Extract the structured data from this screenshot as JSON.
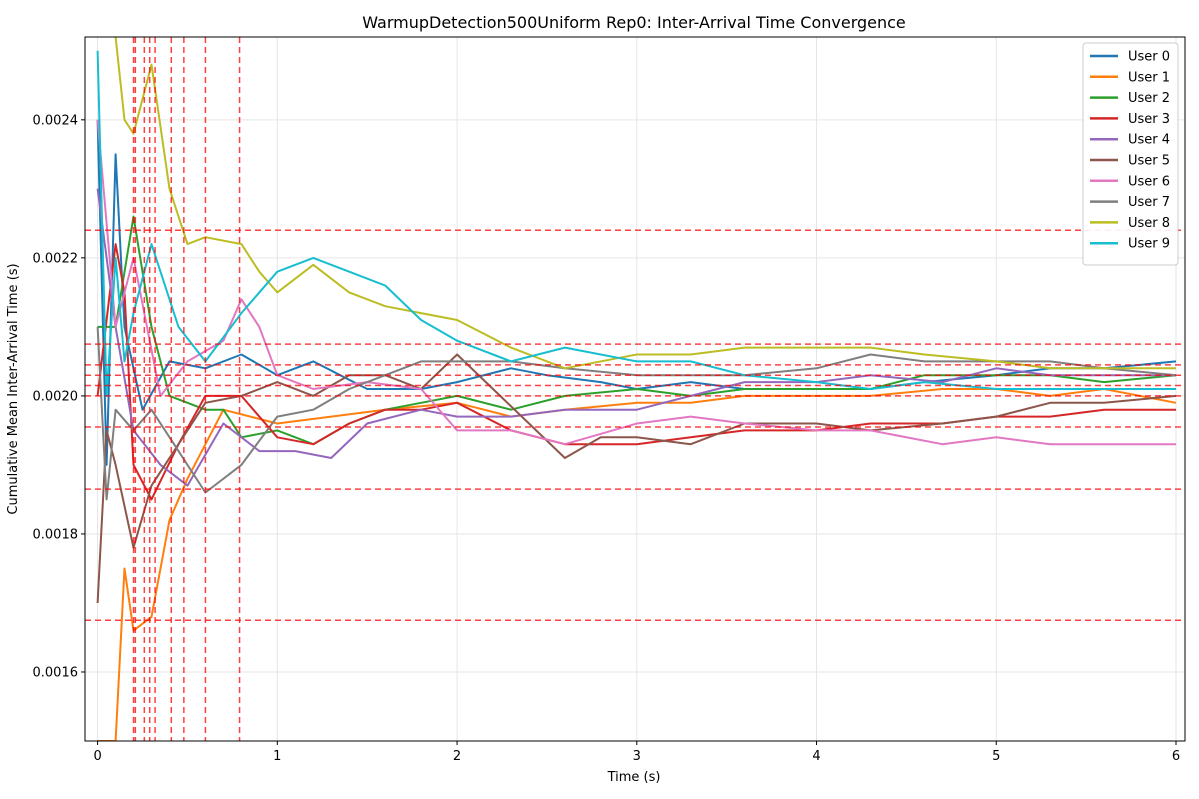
{
  "chart_data": {
    "type": "line",
    "title": "WarmupDetection500Uniform Rep0: Inter-Arrival Time Convergence",
    "xlabel": "Time (s)",
    "ylabel": "Cumulative Mean Inter-Arrival Time (s)",
    "xlim": [
      -0.07,
      6.05
    ],
    "ylim": [
      0.0015,
      0.00252
    ],
    "x_ticks": [
      0,
      1,
      2,
      3,
      4,
      5,
      6
    ],
    "x_tick_labels": [
      "0",
      "1",
      "2",
      "3",
      "4",
      "5",
      "6"
    ],
    "y_ticks": [
      0.0016,
      0.0018,
      0.002,
      0.0022,
      0.0024
    ],
    "y_tick_labels": [
      "0.0016",
      "0.0018",
      "0.0020",
      "0.0022",
      "0.0024"
    ],
    "grid": true,
    "legend_position": "top-right",
    "series": [
      {
        "name": "User 0",
        "color": "#1f77b4",
        "points": [
          [
            0,
            0.0024
          ],
          [
            0.05,
            0.0019
          ],
          [
            0.1,
            0.00235
          ],
          [
            0.15,
            0.0021
          ],
          [
            0.25,
            0.00198
          ],
          [
            0.4,
            0.00205
          ],
          [
            0.6,
            0.00204
          ],
          [
            0.8,
            0.00206
          ],
          [
            1.0,
            0.00203
          ],
          [
            1.2,
            0.00205
          ],
          [
            1.5,
            0.00201
          ],
          [
            1.8,
            0.00201
          ],
          [
            2.0,
            0.00202
          ],
          [
            2.3,
            0.00204
          ],
          [
            2.5,
            0.00203
          ],
          [
            2.8,
            0.00202
          ],
          [
            3.0,
            0.00201
          ],
          [
            3.3,
            0.00202
          ],
          [
            3.6,
            0.00201
          ],
          [
            4.0,
            0.00201
          ],
          [
            4.3,
            0.00201
          ],
          [
            4.6,
            0.00202
          ],
          [
            5.0,
            0.00203
          ],
          [
            5.3,
            0.00204
          ],
          [
            5.6,
            0.00204
          ],
          [
            6.0,
            0.00205
          ]
        ]
      },
      {
        "name": "User 1",
        "color": "#ff7f0e",
        "points": [
          [
            0,
            0.0015
          ],
          [
            0.1,
            0.0015
          ],
          [
            0.15,
            0.00175
          ],
          [
            0.2,
            0.00166
          ],
          [
            0.3,
            0.00168
          ],
          [
            0.4,
            0.00182
          ],
          [
            0.5,
            0.00188
          ],
          [
            0.7,
            0.00198
          ],
          [
            1.0,
            0.00196
          ],
          [
            1.3,
            0.00197
          ],
          [
            1.6,
            0.00198
          ],
          [
            2.0,
            0.00199
          ],
          [
            2.3,
            0.00197
          ],
          [
            2.6,
            0.00198
          ],
          [
            3.0,
            0.00199
          ],
          [
            3.3,
            0.00199
          ],
          [
            3.6,
            0.002
          ],
          [
            4.0,
            0.002
          ],
          [
            4.3,
            0.002
          ],
          [
            4.7,
            0.00201
          ],
          [
            5.0,
            0.00201
          ],
          [
            5.3,
            0.002
          ],
          [
            5.6,
            0.00201
          ],
          [
            6.0,
            0.00199
          ]
        ]
      },
      {
        "name": "User 2",
        "color": "#2ca02c",
        "points": [
          [
            0,
            0.0021
          ],
          [
            0.1,
            0.0021
          ],
          [
            0.2,
            0.00226
          ],
          [
            0.3,
            0.0021
          ],
          [
            0.4,
            0.002
          ],
          [
            0.5,
            0.00199
          ],
          [
            0.6,
            0.00198
          ],
          [
            0.7,
            0.00198
          ],
          [
            0.8,
            0.00194
          ],
          [
            1.0,
            0.00195
          ],
          [
            1.2,
            0.00193
          ],
          [
            1.4,
            0.00196
          ],
          [
            1.6,
            0.00198
          ],
          [
            1.8,
            0.00199
          ],
          [
            2.0,
            0.002
          ],
          [
            2.3,
            0.00198
          ],
          [
            2.6,
            0.002
          ],
          [
            3.0,
            0.00201
          ],
          [
            3.3,
            0.002
          ],
          [
            3.6,
            0.00201
          ],
          [
            4.0,
            0.00201
          ],
          [
            4.3,
            0.00201
          ],
          [
            4.6,
            0.00203
          ],
          [
            5.0,
            0.00203
          ],
          [
            5.3,
            0.00203
          ],
          [
            5.6,
            0.00202
          ],
          [
            6.0,
            0.00203
          ]
        ]
      },
      {
        "name": "User 3",
        "color": "#d62728",
        "points": [
          [
            0,
            0.002
          ],
          [
            0.1,
            0.00222
          ],
          [
            0.15,
            0.00215
          ],
          [
            0.2,
            0.0019
          ],
          [
            0.3,
            0.00185
          ],
          [
            0.45,
            0.00193
          ],
          [
            0.6,
            0.002
          ],
          [
            0.8,
            0.002
          ],
          [
            1.0,
            0.00194
          ],
          [
            1.2,
            0.00193
          ],
          [
            1.4,
            0.00196
          ],
          [
            1.6,
            0.00198
          ],
          [
            1.8,
            0.00198
          ],
          [
            2.0,
            0.00199
          ],
          [
            2.3,
            0.00195
          ],
          [
            2.6,
            0.00193
          ],
          [
            3.0,
            0.00193
          ],
          [
            3.3,
            0.00194
          ],
          [
            3.6,
            0.00195
          ],
          [
            4.0,
            0.00195
          ],
          [
            4.3,
            0.00196
          ],
          [
            4.7,
            0.00196
          ],
          [
            5.0,
            0.00197
          ],
          [
            5.3,
            0.00197
          ],
          [
            5.6,
            0.00198
          ],
          [
            6.0,
            0.00198
          ]
        ]
      },
      {
        "name": "User 4",
        "color": "#9467bd",
        "points": [
          [
            0,
            0.0023
          ],
          [
            0.1,
            0.0021
          ],
          [
            0.2,
            0.00195
          ],
          [
            0.35,
            0.0019
          ],
          [
            0.5,
            0.00187
          ],
          [
            0.7,
            0.00196
          ],
          [
            0.9,
            0.00192
          ],
          [
            1.1,
            0.00192
          ],
          [
            1.3,
            0.00191
          ],
          [
            1.5,
            0.00196
          ],
          [
            1.8,
            0.00198
          ],
          [
            2.0,
            0.00197
          ],
          [
            2.3,
            0.00197
          ],
          [
            2.6,
            0.00198
          ],
          [
            3.0,
            0.00198
          ],
          [
            3.3,
            0.002
          ],
          [
            3.6,
            0.00202
          ],
          [
            4.0,
            0.00202
          ],
          [
            4.3,
            0.00203
          ],
          [
            4.7,
            0.00202
          ],
          [
            5.0,
            0.00204
          ],
          [
            5.3,
            0.00203
          ],
          [
            5.6,
            0.00203
          ],
          [
            6.0,
            0.00203
          ]
        ]
      },
      {
        "name": "User 5",
        "color": "#8c564b",
        "points": [
          [
            0,
            0.0017
          ],
          [
            0.05,
            0.00195
          ],
          [
            0.1,
            0.0019
          ],
          [
            0.2,
            0.00178
          ],
          [
            0.3,
            0.00187
          ],
          [
            0.45,
            0.00193
          ],
          [
            0.6,
            0.00199
          ],
          [
            0.8,
            0.002
          ],
          [
            1.0,
            0.00202
          ],
          [
            1.2,
            0.002
          ],
          [
            1.4,
            0.00203
          ],
          [
            1.6,
            0.00203
          ],
          [
            1.8,
            0.00201
          ],
          [
            2.0,
            0.00206
          ],
          [
            2.2,
            0.00201
          ],
          [
            2.4,
            0.00196
          ],
          [
            2.6,
            0.00191
          ],
          [
            2.8,
            0.00194
          ],
          [
            3.0,
            0.00194
          ],
          [
            3.3,
            0.00193
          ],
          [
            3.6,
            0.00196
          ],
          [
            4.0,
            0.00196
          ],
          [
            4.3,
            0.00195
          ],
          [
            4.7,
            0.00196
          ],
          [
            5.0,
            0.00197
          ],
          [
            5.3,
            0.00199
          ],
          [
            5.6,
            0.00199
          ],
          [
            6.0,
            0.002
          ]
        ]
      },
      {
        "name": "User 6",
        "color": "#e377c2",
        "points": [
          [
            0,
            0.0024
          ],
          [
            0.1,
            0.0021
          ],
          [
            0.2,
            0.0022
          ],
          [
            0.35,
            0.002
          ],
          [
            0.5,
            0.00205
          ],
          [
            0.7,
            0.00208
          ],
          [
            0.8,
            0.00214
          ],
          [
            0.9,
            0.0021
          ],
          [
            1.0,
            0.00203
          ],
          [
            1.2,
            0.00201
          ],
          [
            1.5,
            0.00202
          ],
          [
            1.8,
            0.00201
          ],
          [
            2.0,
            0.00195
          ],
          [
            2.3,
            0.00195
          ],
          [
            2.6,
            0.00193
          ],
          [
            3.0,
            0.00196
          ],
          [
            3.3,
            0.00197
          ],
          [
            3.6,
            0.00196
          ],
          [
            4.0,
            0.00195
          ],
          [
            4.3,
            0.00195
          ],
          [
            4.7,
            0.00193
          ],
          [
            5.0,
            0.00194
          ],
          [
            5.3,
            0.00193
          ],
          [
            5.6,
            0.00193
          ],
          [
            6.0,
            0.00193
          ]
        ]
      },
      {
        "name": "User 7",
        "color": "#7f7f7f",
        "points": [
          [
            0,
            0.0021
          ],
          [
            0.05,
            0.00185
          ],
          [
            0.1,
            0.00198
          ],
          [
            0.2,
            0.00195
          ],
          [
            0.3,
            0.00198
          ],
          [
            0.45,
            0.00192
          ],
          [
            0.6,
            0.00186
          ],
          [
            0.8,
            0.0019
          ],
          [
            1.0,
            0.00197
          ],
          [
            1.2,
            0.00198
          ],
          [
            1.4,
            0.00201
          ],
          [
            1.6,
            0.00203
          ],
          [
            1.8,
            0.00205
          ],
          [
            2.0,
            0.00205
          ],
          [
            2.3,
            0.00205
          ],
          [
            2.6,
            0.00204
          ],
          [
            3.0,
            0.00203
          ],
          [
            3.3,
            0.00203
          ],
          [
            3.6,
            0.00203
          ],
          [
            4.0,
            0.00204
          ],
          [
            4.3,
            0.00206
          ],
          [
            4.6,
            0.00205
          ],
          [
            5.0,
            0.00205
          ],
          [
            5.3,
            0.00205
          ],
          [
            5.6,
            0.00204
          ],
          [
            6.0,
            0.00203
          ]
        ]
      },
      {
        "name": "User 8",
        "color": "#bcbd22",
        "points": [
          [
            0.1,
            0.00252
          ],
          [
            0.15,
            0.0024
          ],
          [
            0.2,
            0.00238
          ],
          [
            0.3,
            0.00248
          ],
          [
            0.4,
            0.0023
          ],
          [
            0.5,
            0.00222
          ],
          [
            0.6,
            0.00223
          ],
          [
            0.8,
            0.00222
          ],
          [
            0.9,
            0.00218
          ],
          [
            1.0,
            0.00215
          ],
          [
            1.2,
            0.00219
          ],
          [
            1.4,
            0.00215
          ],
          [
            1.6,
            0.00213
          ],
          [
            1.8,
            0.00212
          ],
          [
            2.0,
            0.00211
          ],
          [
            2.3,
            0.00207
          ],
          [
            2.6,
            0.00204
          ],
          [
            3.0,
            0.00206
          ],
          [
            3.3,
            0.00206
          ],
          [
            3.6,
            0.00207
          ],
          [
            4.0,
            0.00207
          ],
          [
            4.3,
            0.00207
          ],
          [
            4.6,
            0.00206
          ],
          [
            5.0,
            0.00205
          ],
          [
            5.3,
            0.00204
          ],
          [
            5.6,
            0.00204
          ],
          [
            6.0,
            0.00204
          ]
        ]
      },
      {
        "name": "User 9",
        "color": "#17becf",
        "points": [
          [
            0,
            0.0025
          ],
          [
            0.05,
            0.002
          ],
          [
            0.1,
            0.0022
          ],
          [
            0.15,
            0.00205
          ],
          [
            0.2,
            0.00212
          ],
          [
            0.3,
            0.00222
          ],
          [
            0.45,
            0.0021
          ],
          [
            0.6,
            0.00205
          ],
          [
            0.8,
            0.00212
          ],
          [
            1.0,
            0.00218
          ],
          [
            1.2,
            0.0022
          ],
          [
            1.4,
            0.00218
          ],
          [
            1.6,
            0.00216
          ],
          [
            1.8,
            0.00211
          ],
          [
            2.0,
            0.00208
          ],
          [
            2.3,
            0.00205
          ],
          [
            2.6,
            0.00207
          ],
          [
            3.0,
            0.00205
          ],
          [
            3.3,
            0.00205
          ],
          [
            3.6,
            0.00203
          ],
          [
            4.0,
            0.00202
          ],
          [
            4.3,
            0.00201
          ],
          [
            4.6,
            0.00202
          ],
          [
            5.0,
            0.00201
          ],
          [
            5.3,
            0.00201
          ],
          [
            5.6,
            0.00201
          ],
          [
            6.0,
            0.00201
          ]
        ]
      }
    ],
    "reference_lines": {
      "color": "#ff0000",
      "style": "dashed",
      "horizontal_y": [
        0.00224,
        0.002075,
        0.002045,
        0.00203,
        0.002015,
        0.002,
        0.001955,
        0.001865,
        0.001675
      ],
      "vertical_x": [
        0.2,
        0.21,
        0.26,
        0.29,
        0.32,
        0.41,
        0.48,
        0.6,
        0.79
      ]
    }
  }
}
